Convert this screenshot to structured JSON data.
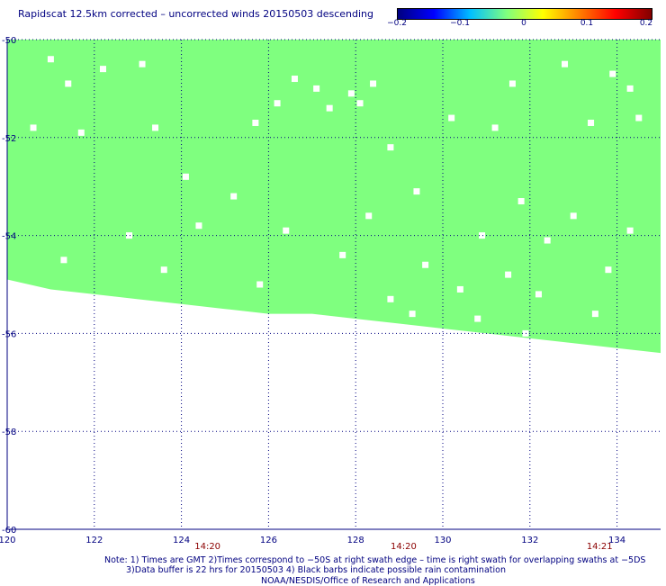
{
  "title": "Rapidscat 12.5km corrected – uncorrected winds 20150503 descending",
  "colorbar": {
    "ticks": [
      "−0.2",
      "−0.1",
      "0",
      "0.1",
      "0.2"
    ],
    "colors": [
      "#000080",
      "#0000ff",
      "#00bfff",
      "#7fff7f",
      "#ffff00",
      "#ff8000",
      "#ff0000",
      "#800000"
    ]
  },
  "chart_data": {
    "type": "heatmap",
    "title": "Rapidscat 12.5km corrected – uncorrected winds 20150503 descending",
    "xlim": [
      120,
      135
    ],
    "ylim": [
      -60,
      -50
    ],
    "xticks": [
      "120",
      "122",
      "124",
      "126",
      "128",
      "130",
      "132",
      "134"
    ],
    "yticks": [
      "-50",
      "-52",
      "-54",
      "-56",
      "-58",
      "-60"
    ],
    "time_labels": [
      {
        "x": 124.6,
        "label": "14:20"
      },
      {
        "x": 129.1,
        "label": "14:20"
      },
      {
        "x": 133.6,
        "label": "14:21"
      }
    ],
    "grid": true,
    "value_color": "#7fff7f",
    "value": 0.0,
    "swath_southern_edge": [
      [
        120,
        -54.9
      ],
      [
        121.0,
        -55.1
      ],
      [
        122.0,
        -55.2
      ],
      [
        123.0,
        -55.3
      ],
      [
        124.0,
        -55.4
      ],
      [
        125.0,
        -55.5
      ],
      [
        126.0,
        -55.6
      ],
      [
        127.0,
        -55.6
      ],
      [
        128.0,
        -55.7
      ],
      [
        129.0,
        -55.8
      ],
      [
        130.0,
        -55.9
      ],
      [
        131.0,
        -56.0
      ],
      [
        132.0,
        -56.1
      ],
      [
        133.0,
        -56.2
      ],
      [
        134.0,
        -56.3
      ],
      [
        135,
        -56.4
      ]
    ],
    "missing_cells": [
      [
        121.0,
        -50.4
      ],
      [
        122.2,
        -50.6
      ],
      [
        123.1,
        -50.5
      ],
      [
        121.4,
        -50.9
      ],
      [
        126.6,
        -50.8
      ],
      [
        127.1,
        -51.0
      ],
      [
        127.9,
        -51.1
      ],
      [
        128.4,
        -50.9
      ],
      [
        126.2,
        -51.3
      ],
      [
        127.4,
        -51.4
      ],
      [
        128.1,
        -51.3
      ],
      [
        131.6,
        -50.9
      ],
      [
        132.8,
        -50.5
      ],
      [
        133.9,
        -50.7
      ],
      [
        134.3,
        -51.0
      ],
      [
        134.5,
        -51.6
      ],
      [
        120.6,
        -51.8
      ],
      [
        121.7,
        -51.9
      ],
      [
        123.4,
        -51.8
      ],
      [
        125.7,
        -51.7
      ],
      [
        130.2,
        -51.6
      ],
      [
        131.2,
        -51.8
      ],
      [
        133.4,
        -51.7
      ],
      [
        128.8,
        -52.2
      ],
      [
        124.1,
        -52.8
      ],
      [
        125.2,
        -53.2
      ],
      [
        129.4,
        -53.1
      ],
      [
        131.8,
        -53.3
      ],
      [
        133.0,
        -53.6
      ],
      [
        122.8,
        -54.0
      ],
      [
        124.4,
        -53.8
      ],
      [
        126.4,
        -53.9
      ],
      [
        128.3,
        -53.6
      ],
      [
        130.9,
        -54.0
      ],
      [
        132.4,
        -54.1
      ],
      [
        134.3,
        -53.9
      ],
      [
        121.3,
        -54.5
      ],
      [
        123.6,
        -54.7
      ],
      [
        127.7,
        -54.4
      ],
      [
        129.6,
        -54.6
      ],
      [
        131.5,
        -54.8
      ],
      [
        133.8,
        -54.7
      ],
      [
        125.8,
        -55.0
      ],
      [
        128.8,
        -55.3
      ],
      [
        130.4,
        -55.1
      ],
      [
        132.2,
        -55.2
      ],
      [
        133.5,
        -55.6
      ],
      [
        130.8,
        -55.7
      ],
      [
        129.3,
        -55.6
      ],
      [
        131.9,
        -56.0
      ]
    ]
  },
  "footer": {
    "line1": "Note: 1) Times are GMT 2)Times correspond to −50S at right swath edge – time is right swath for overlapping swaths at −5DS",
    "line2": "3)Data buffer is 22 hrs for 20150503 4) Black barbs indicate possible rain contamination",
    "line3": "NOAA/NESDIS/Office of Research and Applications"
  }
}
